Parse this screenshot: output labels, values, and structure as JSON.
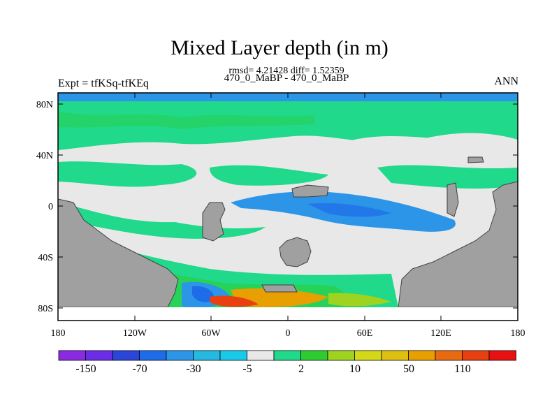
{
  "title": "Mixed Layer depth (in m)",
  "stats": "rmsd= 4.21428 diff= 1.52359",
  "subtitle": "470_0_MaBP - 470_0_MaBP",
  "expt": "Expt = tfKSq-tfKEq",
  "season": "ANN",
  "axes": {
    "lat_ticks": [
      "80N",
      "40N",
      "0",
      "40S",
      "80S"
    ],
    "lon_ticks": [
      "180",
      "120W",
      "60W",
      "0",
      "60E",
      "120E",
      "180"
    ]
  },
  "colorbar": {
    "colors": [
      "#8a2be2",
      "#6a2ee6",
      "#2b45d6",
      "#1e6ce8",
      "#2c95e8",
      "#25b8e0",
      "#18c9e8",
      "#e8e8e8",
      "#20d98a",
      "#2ecc30",
      "#9ed420",
      "#d3d818",
      "#dfbf10",
      "#e8a000",
      "#e86a10",
      "#e84010",
      "#e81010"
    ],
    "labels": [
      "-150",
      "-70",
      "-30",
      "-5",
      "2",
      "10",
      "50",
      "110"
    ]
  },
  "map_colors": {
    "land": "#a0a0a0",
    "neutral": "#e8e8e8",
    "light_green": "#20d98a",
    "light_blue": "#2c95e8",
    "dark_blue": "#1e6ce8",
    "yellow_green": "#9ed420",
    "orange": "#e8a000",
    "red": "#e84010",
    "arctic": "#2c95e8"
  }
}
